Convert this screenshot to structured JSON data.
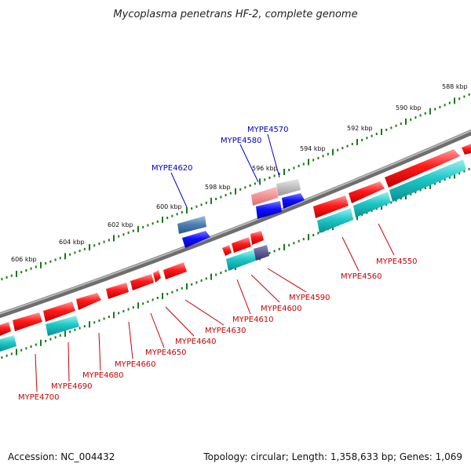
{
  "title": "Mycoplasma penetrans HF-2, complete genome",
  "footer": {
    "accession": "Accession: NC_004432",
    "summary": "Topology: circular; Length: 1,358,633 bp; Genes: 1,069"
  },
  "colors": {
    "forward_gene": "#ff0000",
    "reverse_gene": "#0000ff",
    "forward_cds": "#00bfbf",
    "backbone": "#888888",
    "tick": "#1a7a1a",
    "forward_label": "#cc0000",
    "reverse_label": "#0000cc"
  },
  "tick_labels": [
    "588 kbp",
    "590 kbp",
    "592 kbp",
    "594 kbp",
    "596 kbp",
    "598 kbp",
    "600 kbp",
    "602 kbp",
    "604 kbp",
    "606 kbp"
  ],
  "gene_labels": {
    "reverse": [
      "MYPE4570",
      "MYPE4580",
      "MYPE4620"
    ],
    "forward": [
      "MYPE4550",
      "MYPE4560",
      "MYPE4590",
      "MYPE4600",
      "MYPE4610",
      "MYPE4630",
      "MYPE4640",
      "MYPE4650",
      "MYPE4660",
      "MYPE4680",
      "MYPE4690",
      "MYPE4700"
    ]
  }
}
